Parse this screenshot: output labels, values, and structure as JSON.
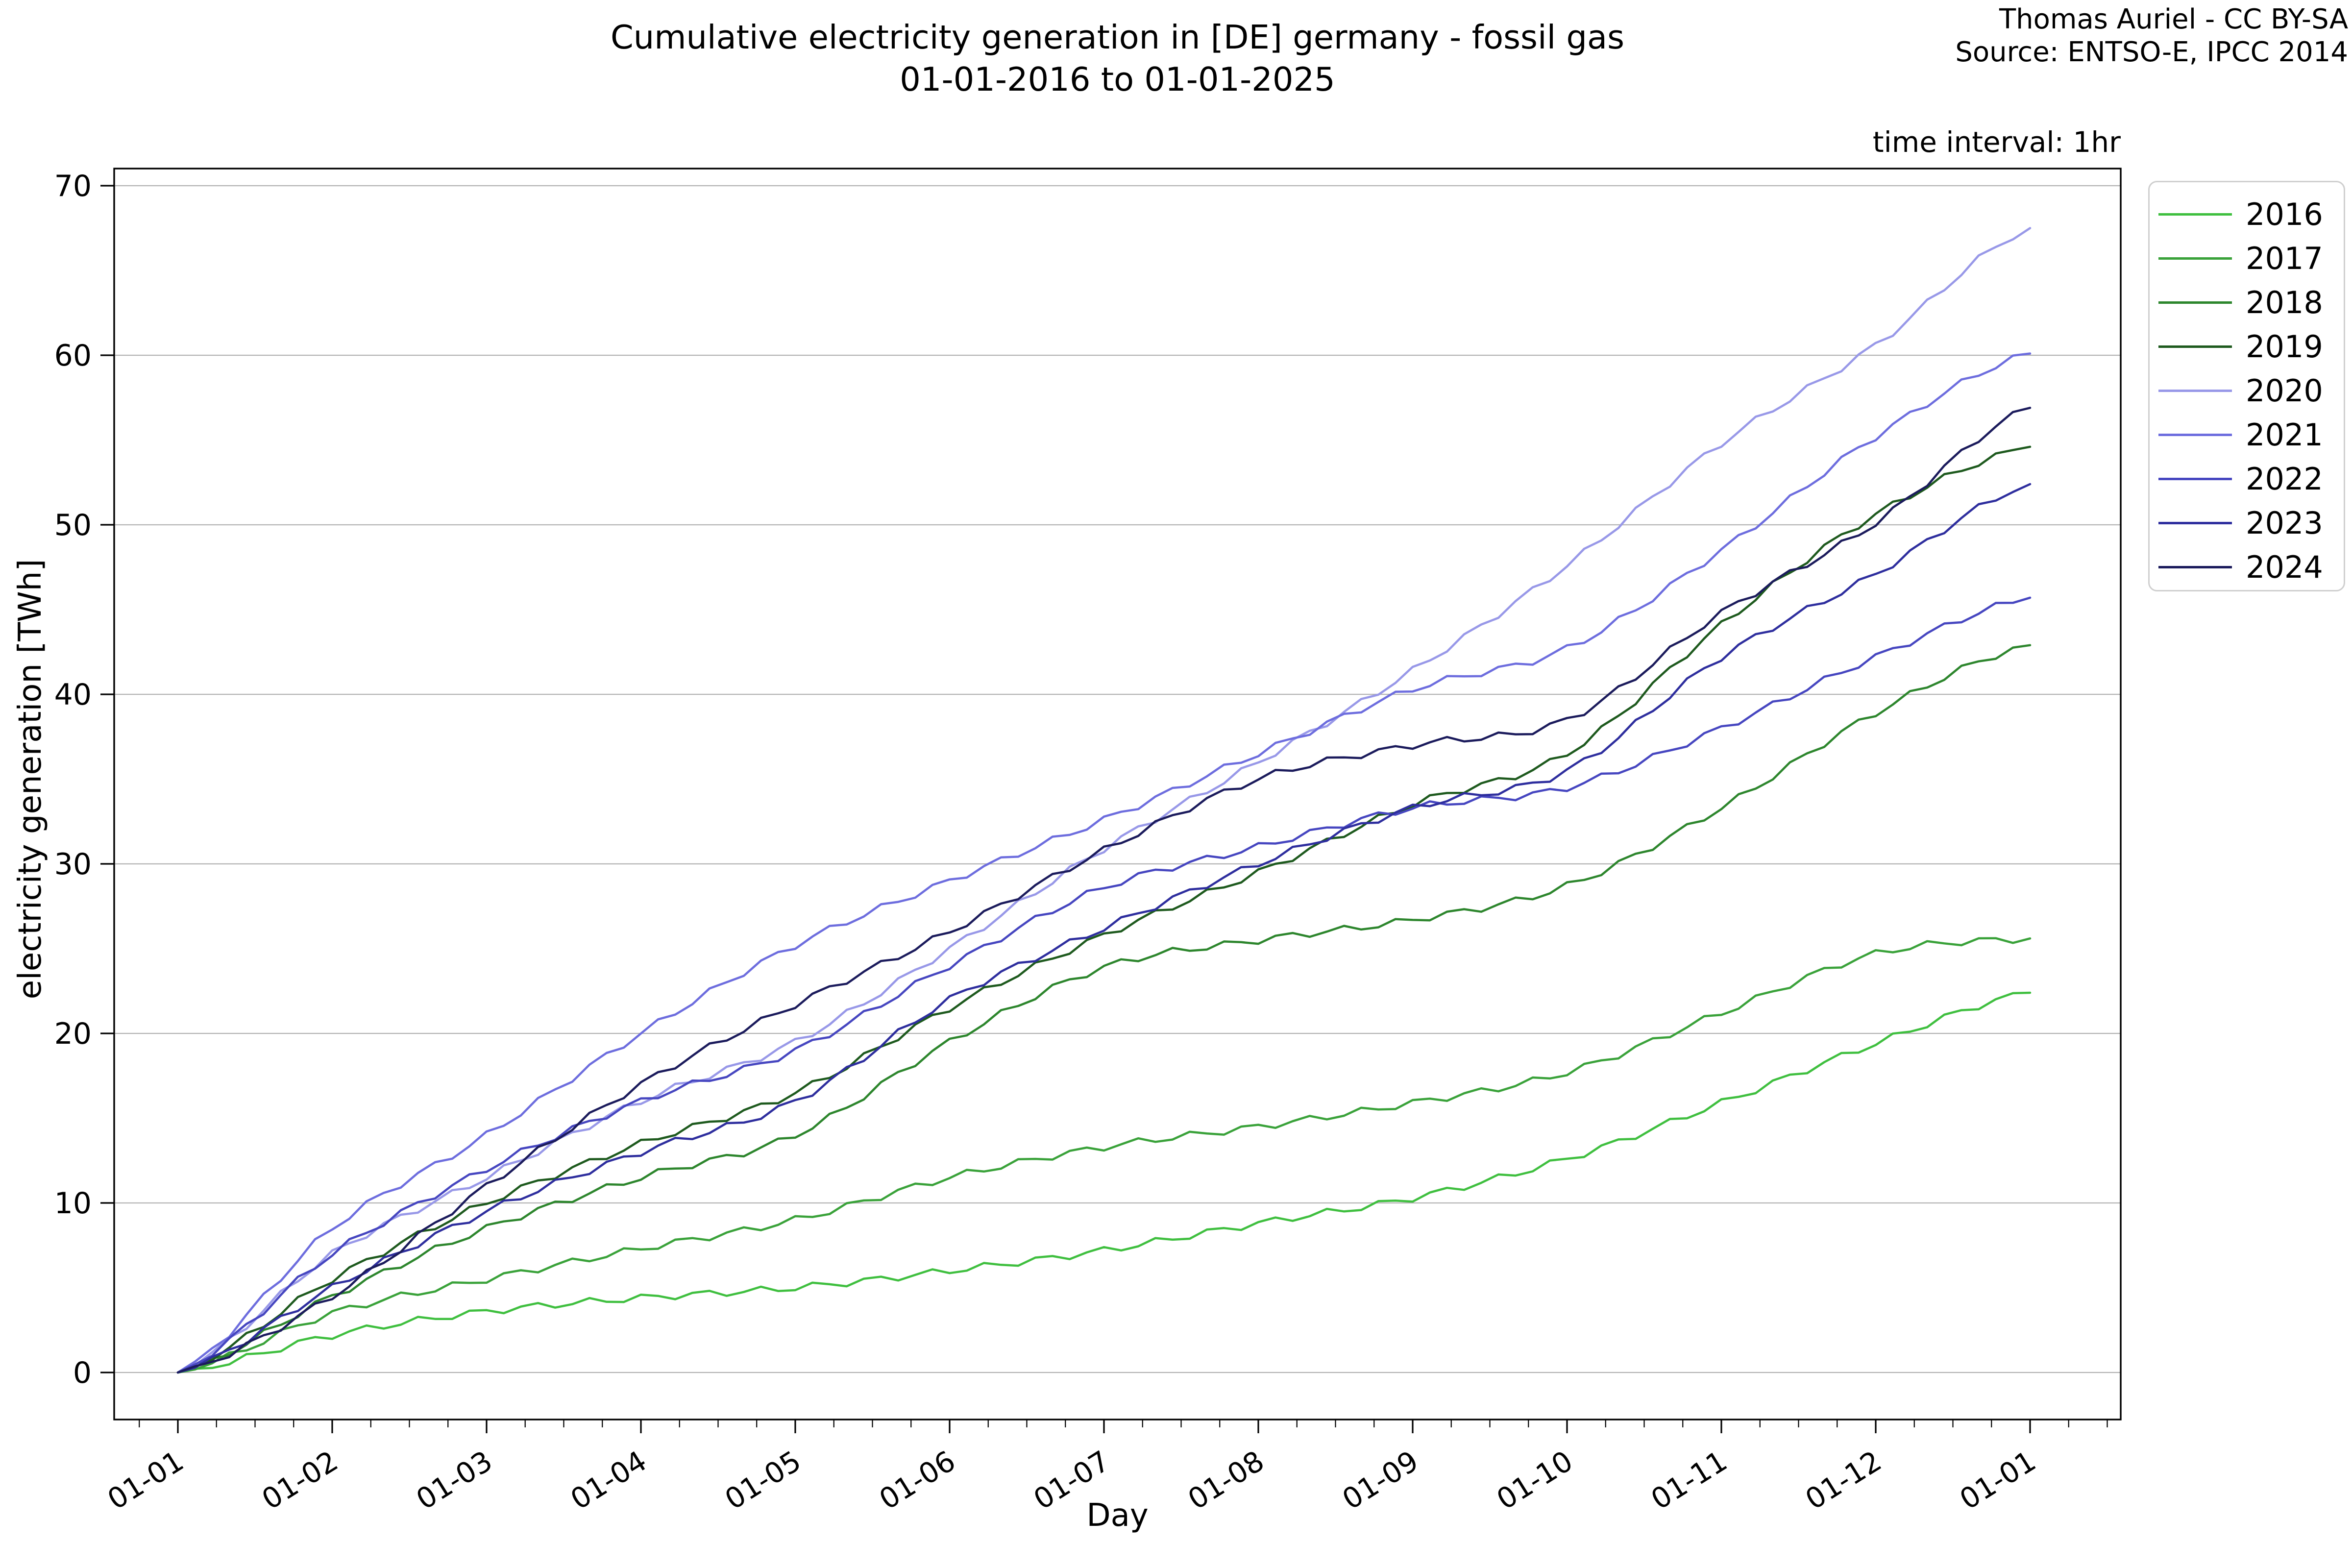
{
  "header": {
    "title_line1": "Cumulative electricity generation in [DE] germany - fossil gas",
    "title_line2": "01-01-2016 to 01-01-2025",
    "attribution_line1": "Thomas Auriel - CC BY-SA",
    "attribution_line2": "Source: ENTSO-E, IPCC 2014",
    "time_interval_note": "time interval: 1hr"
  },
  "chart_data": {
    "type": "line",
    "title": "Cumulative electricity generation in [DE] germany - fossil gas 01-01-2016 to 01-01-2025",
    "xlabel": "Day",
    "ylabel": "electricity generation [TWh]",
    "x_tick_labels": [
      "01-01",
      "01-02",
      "01-03",
      "01-04",
      "01-05",
      "01-06",
      "01-07",
      "01-08",
      "01-09",
      "01-10",
      "01-11",
      "01-12",
      "01-01"
    ],
    "y_ticks": [
      0,
      10,
      20,
      30,
      40,
      50,
      60,
      70
    ],
    "ylim": [
      -3.4,
      71
    ],
    "xlim_months": [
      -0.41,
      12.59
    ],
    "grid": "horizontal-only",
    "grid_color": "#b3b3b3",
    "legend_position": "outside-upper-right",
    "units": "TWh cumulative, sampled monthly from 01-01 of each year to following 01-01",
    "series": [
      {
        "name": "2016",
        "color": "#3fbf3f",
        "values": [
          0,
          2.2,
          3.6,
          4.4,
          5.0,
          6.0,
          7.2,
          8.8,
          10.3,
          12.6,
          15.9,
          19.4,
          22.4
        ]
      },
      {
        "name": "2017",
        "color": "#3aa23a",
        "values": [
          0,
          3.5,
          5.5,
          7.3,
          9.0,
          11.5,
          13.3,
          14.5,
          15.9,
          17.7,
          21.2,
          24.7,
          25.6
        ]
      },
      {
        "name": "2018",
        "color": "#2d862d",
        "values": [
          0,
          4.5,
          8.5,
          11.5,
          14.0,
          19.5,
          23.9,
          25.5,
          26.7,
          28.7,
          33.3,
          38.9,
          42.9
        ]
      },
      {
        "name": "2019",
        "color": "#1e5a1e",
        "values": [
          0,
          5.5,
          10.0,
          13.5,
          16.5,
          21.5,
          25.8,
          29.5,
          33.5,
          36.5,
          44.1,
          50.6,
          54.6
        ]
      },
      {
        "name": "2020",
        "color": "#9898e8",
        "values": [
          0,
          7.0,
          11.5,
          16.0,
          19.5,
          25.0,
          30.9,
          36.0,
          41.4,
          47.6,
          54.8,
          60.6,
          67.5
        ]
      },
      {
        "name": "2021",
        "color": "#6d6dde",
        "values": [
          0,
          8.5,
          14.0,
          20.0,
          25.2,
          29.0,
          32.6,
          36.5,
          40.3,
          42.7,
          48.5,
          55.2,
          60.1
        ]
      },
      {
        "name": "2022",
        "color": "#4646c0",
        "values": [
          0,
          7.0,
          12.0,
          16.0,
          19.0,
          24.0,
          28.6,
          31.0,
          33.3,
          34.5,
          38.0,
          42.2,
          45.7
        ]
      },
      {
        "name": "2023",
        "color": "#2e2e9e",
        "values": [
          0,
          5.0,
          9.5,
          13.0,
          16.0,
          22.0,
          26.2,
          30.0,
          33.3,
          35.5,
          42.2,
          47.1,
          52.4
        ]
      },
      {
        "name": "2024",
        "color": "#1b1b5c",
        "values": [
          0,
          4.5,
          11.0,
          17.0,
          21.7,
          26.0,
          30.8,
          35.0,
          37.0,
          38.5,
          44.8,
          50.1,
          56.9
        ]
      }
    ]
  }
}
